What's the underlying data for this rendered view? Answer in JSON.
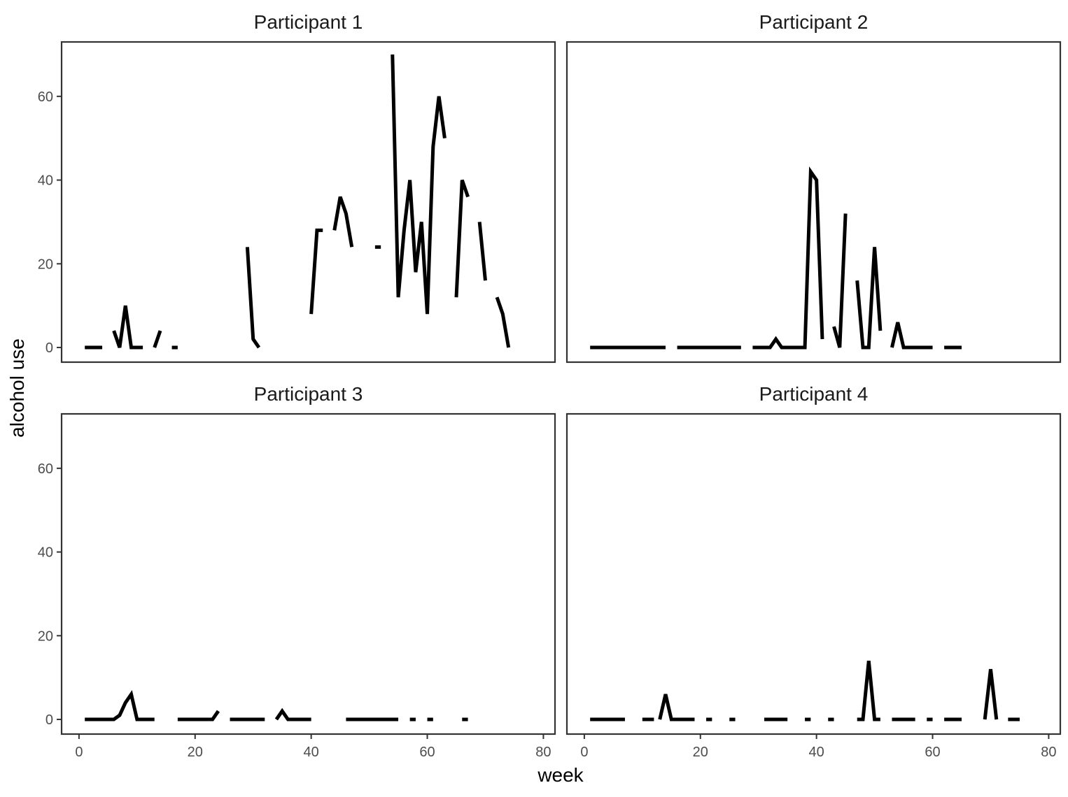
{
  "chart_data": {
    "type": "line",
    "xlabel": "week",
    "ylabel": "alcohol use",
    "xlim": [
      -3,
      82
    ],
    "ylim": [
      -3.5,
      73
    ],
    "x_ticks": [
      0,
      20,
      40,
      60,
      80
    ],
    "y_ticks": [
      0,
      20,
      40,
      60
    ],
    "x_tick_labels": [
      "0",
      "20",
      "40",
      "60",
      "80"
    ],
    "y_tick_labels": [
      "0",
      "20",
      "40",
      "60"
    ],
    "grid": false,
    "facets": [
      "Participant 1",
      "Participant 2",
      "Participant 3",
      "Participant 4"
    ],
    "line_color": "#000000",
    "series": [
      {
        "name": "Participant 1",
        "segments": [
          [
            [
              1,
              0
            ],
            [
              2,
              0
            ],
            [
              3,
              0
            ],
            [
              4,
              0
            ]
          ],
          [
            [
              6,
              4
            ],
            [
              7,
              0
            ],
            [
              8,
              10
            ],
            [
              9,
              0
            ],
            [
              10,
              0
            ],
            [
              11,
              0
            ]
          ],
          [
            [
              13,
              0
            ],
            [
              14,
              4
            ]
          ],
          [
            [
              16,
              0
            ],
            [
              17,
              0
            ]
          ],
          [
            [
              29,
              24
            ],
            [
              30,
              2
            ],
            [
              31,
              0
            ]
          ],
          [
            [
              40,
              8
            ],
            [
              41,
              28
            ],
            [
              42,
              28
            ]
          ],
          [
            [
              44,
              28
            ],
            [
              45,
              36
            ],
            [
              46,
              32
            ],
            [
              47,
              24
            ]
          ],
          [
            [
              51,
              24
            ],
            [
              52,
              24
            ]
          ],
          [
            [
              54,
              70
            ],
            [
              55,
              12
            ],
            [
              56,
              28
            ],
            [
              57,
              40
            ],
            [
              58,
              18
            ],
            [
              59,
              30
            ],
            [
              60,
              8
            ],
            [
              61,
              48
            ],
            [
              62,
              60
            ],
            [
              63,
              50
            ]
          ],
          [
            [
              65,
              12
            ],
            [
              66,
              40
            ],
            [
              67,
              36
            ]
          ],
          [
            [
              69,
              30
            ],
            [
              70,
              16
            ]
          ],
          [
            [
              72,
              12
            ],
            [
              73,
              8
            ],
            [
              74,
              0
            ]
          ]
        ]
      },
      {
        "name": "Participant 2",
        "segments": [
          [
            [
              1,
              0
            ],
            [
              2,
              0
            ],
            [
              3,
              0
            ],
            [
              4,
              0
            ],
            [
              5,
              0
            ],
            [
              6,
              0
            ],
            [
              7,
              0
            ],
            [
              8,
              0
            ],
            [
              9,
              0
            ],
            [
              10,
              0
            ],
            [
              11,
              0
            ],
            [
              12,
              0
            ],
            [
              13,
              0
            ],
            [
              14,
              0
            ]
          ],
          [
            [
              16,
              0
            ],
            [
              17,
              0
            ],
            [
              18,
              0
            ],
            [
              19,
              0
            ],
            [
              20,
              0
            ],
            [
              21,
              0
            ],
            [
              22,
              0
            ],
            [
              23,
              0
            ],
            [
              24,
              0
            ],
            [
              25,
              0
            ],
            [
              26,
              0
            ],
            [
              27,
              0
            ]
          ],
          [
            [
              29,
              0
            ],
            [
              30,
              0
            ],
            [
              31,
              0
            ],
            [
              32,
              0
            ],
            [
              33,
              2
            ],
            [
              34,
              0
            ],
            [
              35,
              0
            ],
            [
              36,
              0
            ],
            [
              37,
              0
            ],
            [
              38,
              0
            ],
            [
              39,
              42
            ],
            [
              40,
              40
            ],
            [
              41,
              2
            ]
          ],
          [
            [
              43,
              5
            ],
            [
              44,
              0
            ],
            [
              45,
              32
            ]
          ],
          [
            [
              47,
              16
            ],
            [
              48,
              0
            ],
            [
              49,
              0
            ],
            [
              50,
              24
            ],
            [
              51,
              4
            ]
          ],
          [
            [
              53,
              0
            ],
            [
              54,
              6
            ],
            [
              55,
              0
            ],
            [
              56,
              0
            ],
            [
              57,
              0
            ],
            [
              58,
              0
            ],
            [
              59,
              0
            ],
            [
              60,
              0
            ]
          ],
          [
            [
              62,
              0
            ],
            [
              63,
              0
            ],
            [
              64,
              0
            ],
            [
              65,
              0
            ]
          ]
        ]
      },
      {
        "name": "Participant 3",
        "segments": [
          [
            [
              1,
              0
            ],
            [
              2,
              0
            ],
            [
              3,
              0
            ],
            [
              4,
              0
            ],
            [
              5,
              0
            ],
            [
              6,
              0
            ],
            [
              7,
              1
            ],
            [
              8,
              4
            ],
            [
              9,
              6
            ],
            [
              10,
              0
            ],
            [
              11,
              0
            ],
            [
              12,
              0
            ],
            [
              13,
              0
            ]
          ],
          [
            [
              17,
              0
            ],
            [
              18,
              0
            ],
            [
              19,
              0
            ],
            [
              20,
              0
            ],
            [
              21,
              0
            ],
            [
              22,
              0
            ],
            [
              23,
              0
            ],
            [
              24,
              2
            ]
          ],
          [
            [
              26,
              0
            ],
            [
              27,
              0
            ],
            [
              28,
              0
            ],
            [
              29,
              0
            ],
            [
              30,
              0
            ],
            [
              31,
              0
            ],
            [
              32,
              0
            ]
          ],
          [
            [
              34,
              0
            ],
            [
              35,
              2
            ],
            [
              36,
              0
            ],
            [
              37,
              0
            ],
            [
              38,
              0
            ],
            [
              39,
              0
            ],
            [
              40,
              0
            ]
          ],
          [
            [
              46,
              0
            ],
            [
              47,
              0
            ],
            [
              48,
              0
            ],
            [
              49,
              0
            ],
            [
              50,
              0
            ],
            [
              51,
              0
            ],
            [
              52,
              0
            ],
            [
              53,
              0
            ],
            [
              54,
              0
            ],
            [
              55,
              0
            ]
          ],
          [
            [
              57,
              0
            ],
            [
              58,
              0
            ]
          ],
          [
            [
              60,
              0
            ],
            [
              61,
              0
            ]
          ],
          [
            [
              66,
              0
            ],
            [
              67,
              0
            ]
          ]
        ]
      },
      {
        "name": "Participant 4",
        "segments": [
          [
            [
              1,
              0
            ],
            [
              2,
              0
            ],
            [
              3,
              0
            ],
            [
              4,
              0
            ],
            [
              5,
              0
            ],
            [
              6,
              0
            ],
            [
              7,
              0
            ]
          ],
          [
            [
              10,
              0
            ],
            [
              11,
              0
            ],
            [
              12,
              0
            ]
          ],
          [
            [
              13,
              0
            ],
            [
              14,
              6
            ],
            [
              15,
              0
            ],
            [
              16,
              0
            ],
            [
              17,
              0
            ],
            [
              18,
              0
            ],
            [
              19,
              0
            ]
          ],
          [
            [
              21,
              0
            ],
            [
              22,
              0
            ]
          ],
          [
            [
              25,
              0
            ],
            [
              26,
              0
            ]
          ],
          [
            [
              31,
              0
            ],
            [
              32,
              0
            ],
            [
              33,
              0
            ],
            [
              34,
              0
            ],
            [
              35,
              0
            ]
          ],
          [
            [
              38,
              0
            ],
            [
              39,
              0
            ]
          ],
          [
            [
              42,
              0
            ],
            [
              43,
              0
            ]
          ],
          [
            [
              47,
              0
            ],
            [
              48,
              0
            ],
            [
              49,
              14
            ],
            [
              50,
              0
            ],
            [
              51,
              0
            ]
          ],
          [
            [
              53,
              0
            ],
            [
              54,
              0
            ],
            [
              55,
              0
            ],
            [
              56,
              0
            ],
            [
              57,
              0
            ]
          ],
          [
            [
              59,
              0
            ],
            [
              60,
              0
            ]
          ],
          [
            [
              62,
              0
            ],
            [
              63,
              0
            ],
            [
              64,
              0
            ],
            [
              65,
              0
            ]
          ],
          [
            [
              69,
              0
            ],
            [
              70,
              12
            ],
            [
              71,
              0
            ]
          ],
          [
            [
              73,
              0
            ],
            [
              74,
              0
            ],
            [
              75,
              0
            ]
          ]
        ]
      }
    ]
  }
}
